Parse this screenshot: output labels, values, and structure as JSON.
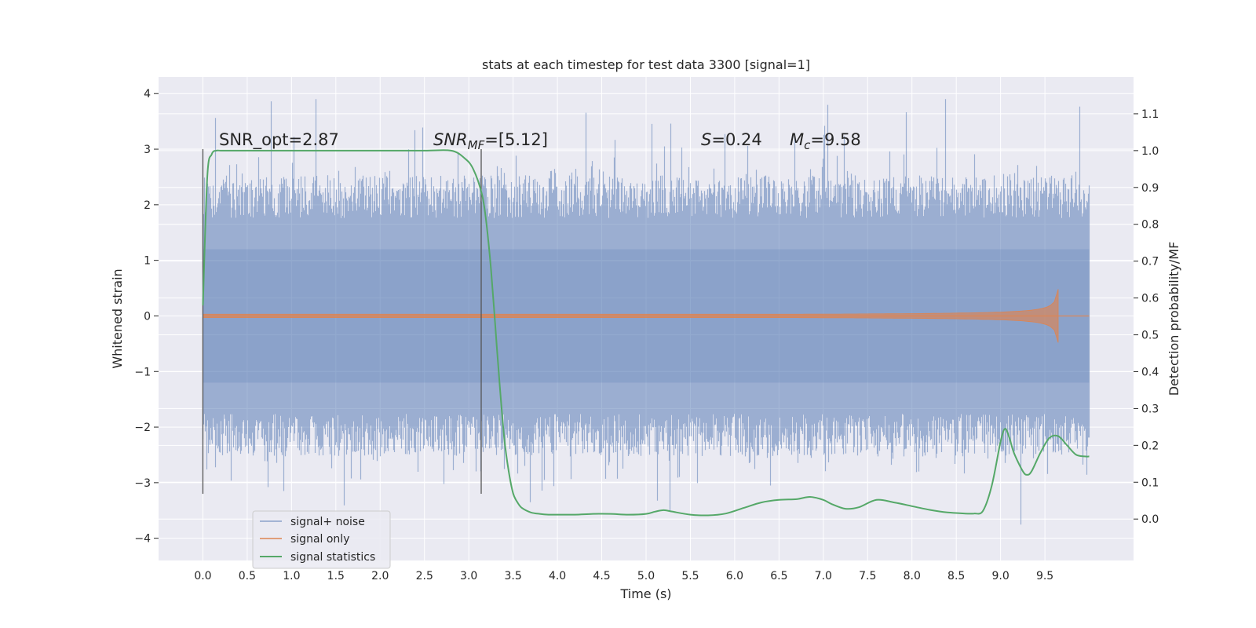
{
  "chart_data": {
    "type": "line",
    "title": "stats at each timestep for test data 3300 [signal=1]",
    "xlabel": "Time (s)",
    "ylabel": "Whitened strain",
    "y2label": "Detection probability/MF",
    "xlim": [
      -0.5,
      10.5
    ],
    "ylim": [
      -4.4,
      4.3
    ],
    "y2lim": [
      -0.1125,
      1.2
    ],
    "xticks": [
      0.0,
      0.5,
      1.0,
      1.5,
      2.0,
      2.5,
      3.0,
      3.5,
      4.0,
      4.5,
      5.0,
      5.5,
      6.0,
      6.5,
      7.0,
      7.5,
      8.0,
      8.5,
      9.0,
      9.5
    ],
    "xtick_labels": [
      "0.0",
      "0.5",
      "1.0",
      "1.5",
      "2.0",
      "2.5",
      "3.0",
      "3.5",
      "4.0",
      "4.5",
      "5.0",
      "5.5",
      "6.0",
      "6.5",
      "7.0",
      "7.5",
      "8.0",
      "8.5",
      "9.0",
      "9.5"
    ],
    "yticks": [
      -4,
      -3,
      -2,
      -1,
      0,
      1,
      2,
      3,
      4
    ],
    "ytick_labels": [
      "−4",
      "−3",
      "−2",
      "−1",
      "0",
      "1",
      "2",
      "3",
      "4"
    ],
    "y2ticks": [
      0.0,
      0.1,
      0.2,
      0.3,
      0.4,
      0.5,
      0.6,
      0.7,
      0.8,
      0.9,
      1.0,
      1.1
    ],
    "y2tick_labels": [
      "0.0",
      "0.1",
      "0.2",
      "0.3",
      "0.4",
      "0.5",
      "0.6",
      "0.7",
      "0.8",
      "0.9",
      "1.0",
      "1.1"
    ],
    "grid": true,
    "legend_position": "lower-left",
    "annotations": {
      "snr_opt": "SNR_opt=2.87",
      "snr_mf_base": "SNR",
      "snr_mf_sub": "MF",
      "snr_mf_value": "=[5.12]",
      "s_base": "S",
      "s_value": "=0.24",
      "mc_base": "M",
      "mc_sub": "c",
      "mc_value": "=9.58"
    },
    "vlines": [
      {
        "x": 0.0,
        "y_range": [
          -3.2,
          3.0
        ]
      },
      {
        "x": 3.14,
        "y_range": [
          -3.2,
          3.0
        ]
      }
    ],
    "series": [
      {
        "name": "signal+ noise",
        "color": "#4c72b0",
        "axis": "left",
        "style": "noise",
        "x_range": [
          0.0,
          10.0
        ],
        "typical_amplitude": 2.2,
        "extreme_max": 3.9,
        "extreme_min": -4.05
      },
      {
        "name": "signal only",
        "color": "#dd8452",
        "axis": "left",
        "style": "chirp",
        "x_range": [
          0.0,
          9.65
        ],
        "peak_amplitude": 0.48
      },
      {
        "name": "signal statistics",
        "color": "#55a868",
        "axis": "right",
        "x": [
          0.0,
          0.05,
          0.1,
          0.15,
          0.2,
          0.3,
          0.5,
          1.0,
          1.5,
          2.0,
          2.5,
          2.8,
          2.95,
          3.05,
          3.15,
          3.2,
          3.25,
          3.3,
          3.35,
          3.4,
          3.45,
          3.5,
          3.55,
          3.6,
          3.7,
          3.8,
          3.9,
          4.0,
          4.2,
          4.4,
          4.6,
          4.8,
          5.0,
          5.1,
          5.2,
          5.3,
          5.5,
          5.7,
          5.9,
          6.1,
          6.3,
          6.5,
          6.7,
          6.85,
          7.0,
          7.1,
          7.25,
          7.4,
          7.6,
          7.8,
          8.0,
          8.2,
          8.4,
          8.6,
          8.7,
          8.8,
          8.9,
          9.0,
          9.05,
          9.1,
          9.15,
          9.25,
          9.3,
          9.35,
          9.45,
          9.55,
          9.65,
          9.75,
          9.85,
          9.95,
          10.0
        ],
        "y": [
          0.58,
          0.93,
          0.99,
          1.0,
          1.0,
          1.0,
          1.0,
          1.0,
          1.0,
          1.0,
          1.0,
          1.0,
          0.98,
          0.95,
          0.88,
          0.8,
          0.68,
          0.52,
          0.36,
          0.22,
          0.13,
          0.07,
          0.045,
          0.03,
          0.018,
          0.014,
          0.012,
          0.012,
          0.012,
          0.014,
          0.014,
          0.012,
          0.014,
          0.02,
          0.024,
          0.02,
          0.012,
          0.01,
          0.015,
          0.03,
          0.045,
          0.052,
          0.054,
          0.06,
          0.052,
          0.04,
          0.028,
          0.032,
          0.052,
          0.045,
          0.035,
          0.025,
          0.018,
          0.015,
          0.015,
          0.022,
          0.09,
          0.21,
          0.245,
          0.22,
          0.18,
          0.13,
          0.12,
          0.13,
          0.18,
          0.22,
          0.225,
          0.2,
          0.175,
          0.17,
          0.17
        ]
      }
    ]
  }
}
